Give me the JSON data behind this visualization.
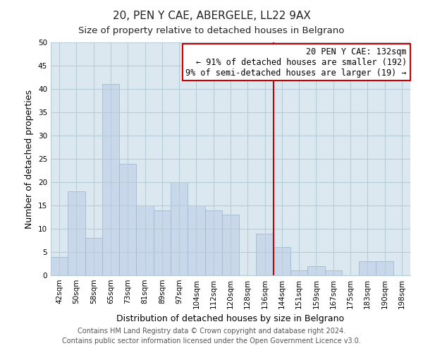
{
  "title": "20, PEN Y CAE, ABERGELE, LL22 9AX",
  "subtitle": "Size of property relative to detached houses in Belgrano",
  "xlabel": "Distribution of detached houses by size in Belgrano",
  "ylabel": "Number of detached properties",
  "footer_line1": "Contains HM Land Registry data © Crown copyright and database right 2024.",
  "footer_line2": "Contains public sector information licensed under the Open Government Licence v3.0.",
  "bin_labels": [
    "42sqm",
    "50sqm",
    "58sqm",
    "65sqm",
    "73sqm",
    "81sqm",
    "89sqm",
    "97sqm",
    "104sqm",
    "112sqm",
    "120sqm",
    "128sqm",
    "136sqm",
    "144sqm",
    "151sqm",
    "159sqm",
    "167sqm",
    "175sqm",
    "183sqm",
    "190sqm",
    "198sqm"
  ],
  "bar_heights": [
    4,
    18,
    8,
    41,
    24,
    15,
    14,
    20,
    15,
    14,
    13,
    0,
    9,
    6,
    1,
    2,
    1,
    0,
    3,
    3,
    0
  ],
  "bar_color": "#c8d8ea",
  "bar_edge_color": "#a0b8d0",
  "plot_bg_color": "#dce8f0",
  "reference_line_color": "#cc0000",
  "annotation_title": "20 PEN Y CAE: 132sqm",
  "annotation_line1": "← 91% of detached houses are smaller (192)",
  "annotation_line2": "9% of semi-detached houses are larger (19) →",
  "annotation_box_color": "#ffffff",
  "annotation_box_edge_color": "#cc0000",
  "ylim": [
    0,
    50
  ],
  "yticks": [
    0,
    5,
    10,
    15,
    20,
    25,
    30,
    35,
    40,
    45,
    50
  ],
  "background_color": "#ffffff",
  "grid_color": "#b8ccd8",
  "title_fontsize": 11,
  "subtitle_fontsize": 9.5,
  "axis_label_fontsize": 9,
  "tick_fontsize": 7.5,
  "annotation_fontsize": 8.5,
  "footer_fontsize": 7
}
